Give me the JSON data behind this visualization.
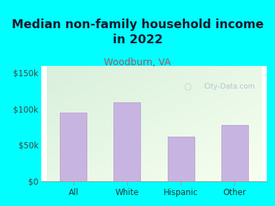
{
  "title": "Median non-family household income\nin 2022",
  "subtitle": "Woodburn, VA",
  "categories": [
    "All",
    "White",
    "Hispanic",
    "Other"
  ],
  "values": [
    95000,
    110000,
    62000,
    78000
  ],
  "bar_color": "#c8b4e0",
  "bar_edge_color": "#b8a0d0",
  "title_fontsize": 12.5,
  "subtitle_fontsize": 10,
  "subtitle_color": "#aa5566",
  "title_color": "#1a1a2e",
  "bg_color": "#00ffff",
  "plot_bg_color_topleft": "#d8f0dc",
  "plot_bg_color_bottomright": "#f8fff0",
  "ylim": [
    0,
    160000
  ],
  "yticks": [
    0,
    50000,
    100000,
    150000
  ],
  "ytick_labels": [
    "$0",
    "$50k",
    "$100k",
    "$150k"
  ],
  "watermark": "City-Data.com",
  "tick_label_color": "#444444",
  "xlabel_color": "#333333"
}
